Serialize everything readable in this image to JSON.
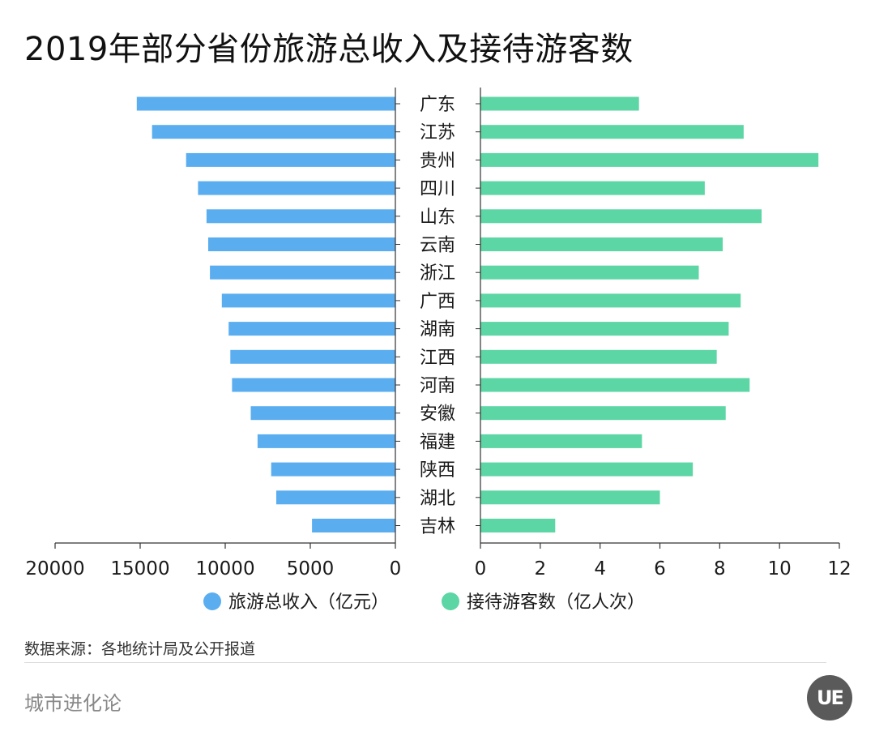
{
  "title": "2019年部分省份旅游总收入及接待游客数",
  "source": "数据来源：各地统计局及公开报道",
  "brand": "城市进化论",
  "logo_text": "UE",
  "colors": {
    "revenue": "#5aaef0",
    "visitors": "#5cd6a4",
    "axis": "#333333",
    "text": "#1a1a1a",
    "logo_bg": "#5a5a5a"
  },
  "chart_data": {
    "type": "bar",
    "orientation": "horizontal",
    "layout": "butterfly",
    "categories": [
      "广东",
      "江苏",
      "贵州",
      "四川",
      "山东",
      "云南",
      "浙江",
      "广西",
      "湖南",
      "江西",
      "河南",
      "安徽",
      "福建",
      "陕西",
      "湖北",
      "吉林"
    ],
    "series": [
      {
        "name": "旅游总收入（亿元）",
        "side": "left",
        "values": [
          15200,
          14300,
          12300,
          11600,
          11100,
          11000,
          10900,
          10200,
          9800,
          9700,
          9600,
          8500,
          8100,
          7300,
          7000,
          4900
        ],
        "xlim": [
          0,
          20000
        ],
        "ticks": [
          "20000",
          "15000",
          "10000",
          "5000",
          "0"
        ]
      },
      {
        "name": "接待游客数（亿人次）",
        "side": "right",
        "values": [
          5.3,
          8.8,
          11.3,
          7.5,
          9.4,
          8.1,
          7.3,
          8.7,
          8.3,
          7.9,
          9.0,
          8.2,
          5.4,
          7.1,
          6.0,
          2.5
        ],
        "xlim": [
          0,
          12
        ],
        "ticks": [
          "0",
          "2",
          "4",
          "6",
          "8",
          "10",
          "12"
        ]
      }
    ],
    "grid": false,
    "legend": "bottom"
  }
}
